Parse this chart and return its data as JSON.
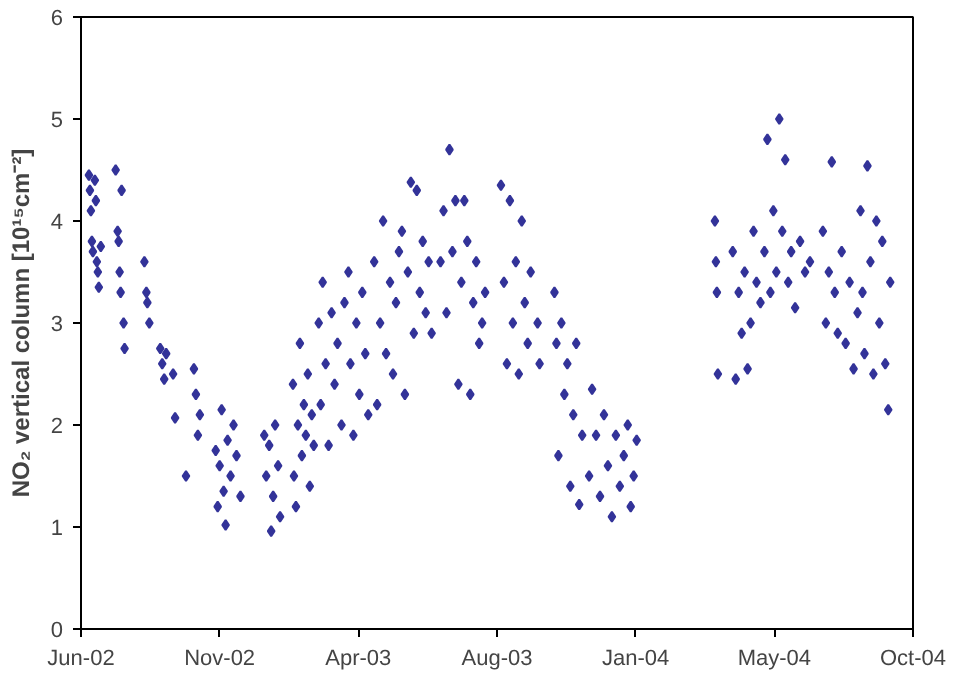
{
  "chart_data": {
    "type": "scatter",
    "ylabel": "NO₂ vertical column [10¹⁵cm⁻²]",
    "marker": "diamond",
    "grid": false,
    "xlim": [
      "2002-06-30",
      "2004-10-17"
    ],
    "xticks": [
      {
        "value": "2002-06-30",
        "label": "Jun-02"
      },
      {
        "value": "2002-11-17",
        "label": "Nov-02"
      },
      {
        "value": "2003-04-06",
        "label": "Apr-03"
      },
      {
        "value": "2003-08-24",
        "label": "Aug-03"
      },
      {
        "value": "2004-01-11",
        "label": "Jan-04"
      },
      {
        "value": "2004-05-30",
        "label": "May-04"
      },
      {
        "value": "2004-10-17",
        "label": "Oct-04"
      }
    ],
    "ylim": [
      0,
      6
    ],
    "yticks": [
      0,
      1,
      2,
      3,
      4,
      5,
      6
    ],
    "series": [
      {
        "color": "#333399",
        "x": [
          "2002-07-08",
          "2002-07-09",
          "2002-07-10",
          "2002-07-11",
          "2002-07-12",
          "2002-07-14",
          "2002-07-15",
          "2002-07-16",
          "2002-07-17",
          "2002-07-18",
          "2002-07-20",
          "2002-08-04",
          "2002-08-06",
          "2002-08-07",
          "2002-08-08",
          "2002-08-09",
          "2002-08-10",
          "2002-08-12",
          "2002-08-13",
          "2002-09-02",
          "2002-09-04",
          "2002-09-05",
          "2002-09-07",
          "2002-09-18",
          "2002-09-20",
          "2002-09-22",
          "2002-09-24",
          "2002-10-01",
          "2002-10-03",
          "2002-10-14",
          "2002-10-22",
          "2002-10-24",
          "2002-10-26",
          "2002-10-28",
          "2002-11-13",
          "2002-11-15",
          "2002-11-17",
          "2002-11-19",
          "2002-11-21",
          "2002-11-23",
          "2002-11-25",
          "2002-11-28",
          "2002-12-01",
          "2002-12-04",
          "2002-12-08",
          "2003-01-01",
          "2003-01-03",
          "2003-01-06",
          "2003-01-08",
          "2003-01-10",
          "2003-01-12",
          "2003-01-15",
          "2003-01-17",
          "2003-01-30",
          "2003-01-31",
          "2003-02-02",
          "2003-02-04",
          "2003-02-06",
          "2003-02-08",
          "2003-02-10",
          "2003-02-12",
          "2003-02-14",
          "2003-02-16",
          "2003-02-18",
          "2003-02-20",
          "2003-02-25",
          "2003-02-27",
          "2003-03-01",
          "2003-03-04",
          "2003-03-07",
          "2003-03-10",
          "2003-03-13",
          "2003-03-16",
          "2003-03-20",
          "2003-03-23",
          "2003-03-27",
          "2003-03-29",
          "2003-04-01",
          "2003-04-04",
          "2003-04-07",
          "2003-04-10",
          "2003-04-13",
          "2003-04-16",
          "2003-04-22",
          "2003-04-25",
          "2003-04-28",
          "2003-05-01",
          "2003-05-04",
          "2003-05-08",
          "2003-05-11",
          "2003-05-14",
          "2003-05-17",
          "2003-05-20",
          "2003-05-23",
          "2003-05-26",
          "2003-05-29",
          "2003-06-01",
          "2003-06-04",
          "2003-06-07",
          "2003-06-10",
          "2003-06-13",
          "2003-06-16",
          "2003-06-19",
          "2003-06-28",
          "2003-07-01",
          "2003-07-04",
          "2003-07-07",
          "2003-07-10",
          "2003-07-13",
          "2003-07-16",
          "2003-07-19",
          "2003-07-22",
          "2003-07-25",
          "2003-07-28",
          "2003-07-31",
          "2003-08-03",
          "2003-08-06",
          "2003-08-09",
          "2003-08-12",
          "2003-08-28",
          "2003-08-31",
          "2003-09-03",
          "2003-09-06",
          "2003-09-09",
          "2003-09-12",
          "2003-09-15",
          "2003-09-18",
          "2003-09-21",
          "2003-09-24",
          "2003-09-27",
          "2003-10-04",
          "2003-10-06",
          "2003-10-21",
          "2003-10-23",
          "2003-10-25",
          "2003-10-28",
          "2003-10-31",
          "2003-11-03",
          "2003-11-06",
          "2003-11-09",
          "2003-11-12",
          "2003-11-15",
          "2003-11-18",
          "2003-11-25",
          "2003-11-28",
          "2003-12-02",
          "2003-12-06",
          "2003-12-10",
          "2003-12-14",
          "2003-12-18",
          "2003-12-22",
          "2003-12-26",
          "2003-12-30",
          "2004-01-03",
          "2004-01-06",
          "2004-01-09",
          "2004-01-12",
          "2004-03-31",
          "2004-04-01",
          "2004-04-02",
          "2004-04-03",
          "2004-04-18",
          "2004-04-21",
          "2004-04-24",
          "2004-04-27",
          "2004-04-30",
          "2004-05-03",
          "2004-05-06",
          "2004-05-09",
          "2004-05-12",
          "2004-05-16",
          "2004-05-20",
          "2004-05-23",
          "2004-05-26",
          "2004-05-29",
          "2004-06-01",
          "2004-06-04",
          "2004-06-07",
          "2004-06-10",
          "2004-06-13",
          "2004-06-16",
          "2004-06-20",
          "2004-06-25",
          "2004-06-30",
          "2004-07-05",
          "2004-07-18",
          "2004-07-21",
          "2004-07-24",
          "2004-07-27",
          "2004-07-30",
          "2004-08-02",
          "2004-08-06",
          "2004-08-10",
          "2004-08-14",
          "2004-08-18",
          "2004-08-22",
          "2004-08-25",
          "2004-08-27",
          "2004-08-29",
          "2004-09-01",
          "2004-09-04",
          "2004-09-07",
          "2004-09-10",
          "2004-09-13",
          "2004-09-16",
          "2004-09-19",
          "2004-09-22",
          "2004-09-24"
        ],
        "values": [
          4.45,
          4.3,
          4.1,
          3.8,
          3.7,
          4.4,
          4.2,
          3.6,
          3.5,
          3.35,
          3.75,
          4.5,
          3.9,
          3.8,
          3.5,
          3.3,
          4.3,
          3.0,
          2.75,
          3.6,
          3.3,
          3.2,
          3.0,
          2.75,
          2.6,
          2.45,
          2.7,
          2.5,
          2.07,
          1.5,
          2.55,
          2.3,
          1.9,
          2.1,
          1.75,
          1.2,
          1.6,
          2.15,
          1.35,
          1.02,
          1.85,
          1.5,
          2.0,
          1.7,
          1.3,
          1.9,
          1.5,
          1.8,
          0.96,
          1.3,
          2.0,
          1.6,
          1.1,
          2.4,
          1.5,
          1.2,
          2.0,
          2.8,
          1.7,
          2.2,
          1.9,
          2.5,
          1.4,
          2.1,
          1.8,
          3.0,
          2.2,
          3.4,
          2.6,
          1.8,
          3.1,
          2.4,
          2.8,
          2.0,
          3.2,
          3.5,
          2.6,
          1.9,
          3.0,
          2.3,
          3.3,
          2.7,
          2.1,
          3.6,
          2.2,
          3.0,
          4.0,
          2.7,
          3.4,
          2.5,
          3.2,
          3.7,
          3.9,
          2.3,
          3.5,
          4.38,
          2.9,
          4.3,
          3.3,
          3.8,
          3.1,
          3.6,
          2.9,
          3.6,
          4.1,
          3.1,
          4.7,
          3.7,
          4.2,
          2.4,
          3.4,
          4.2,
          3.8,
          2.3,
          3.2,
          3.6,
          2.8,
          3.0,
          3.3,
          4.35,
          3.4,
          2.6,
          4.2,
          3.0,
          3.6,
          2.5,
          4.0,
          3.2,
          2.8,
          3.5,
          3.0,
          2.6,
          3.3,
          2.8,
          1.7,
          3.0,
          2.3,
          2.6,
          1.4,
          2.1,
          2.8,
          1.22,
          1.9,
          1.5,
          2.35,
          1.9,
          1.3,
          2.1,
          1.6,
          1.1,
          1.9,
          1.4,
          1.7,
          2.0,
          1.2,
          1.5,
          1.85,
          4.0,
          3.6,
          3.3,
          2.5,
          3.7,
          2.45,
          3.3,
          2.9,
          3.5,
          2.55,
          3.0,
          3.9,
          3.4,
          3.2,
          3.7,
          4.8,
          3.3,
          4.1,
          3.5,
          5.0,
          3.9,
          4.6,
          3.4,
          3.7,
          3.15,
          3.8,
          3.5,
          3.6,
          3.9,
          3.0,
          3.5,
          4.58,
          3.3,
          2.9,
          3.7,
          2.8,
          3.4,
          2.55,
          3.1,
          4.1,
          3.3,
          2.7,
          4.54,
          3.6,
          2.5,
          4.0,
          3.0,
          3.8,
          2.6,
          2.15,
          3.4
        ]
      }
    ]
  }
}
